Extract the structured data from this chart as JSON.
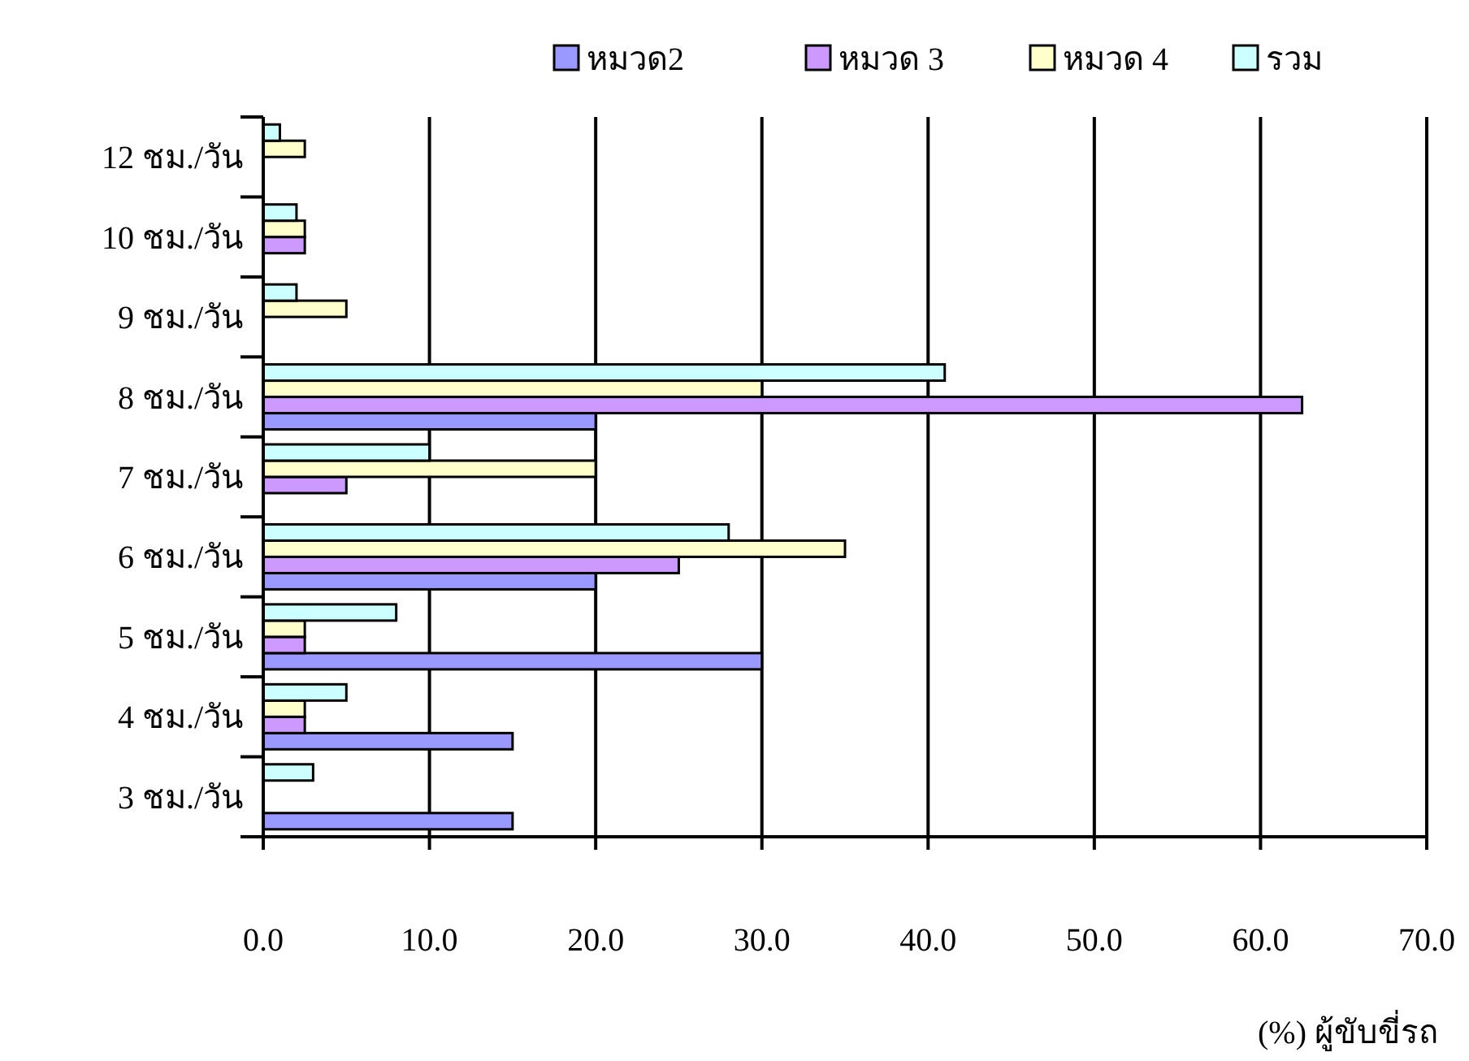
{
  "chart_data": {
    "type": "bar",
    "orientation": "horizontal",
    "xlabel": "(%) ผู้ขับขี่รถ",
    "categories": [
      "12 ชม./วัน",
      "10 ชม./วัน",
      "9 ชม./วัน",
      "8 ชม./วัน",
      "7 ชม./วัน",
      "6 ชม./วัน",
      "5 ชม./วัน",
      "4 ชม./วัน",
      "3 ชม./วัน"
    ],
    "series": [
      {
        "name": "หมวด2",
        "color": "#9999ff",
        "values": [
          0,
          0,
          0,
          20,
          0,
          20,
          30,
          15,
          15
        ]
      },
      {
        "name": "หมวด 3",
        "color": "#cc99ff",
        "values": [
          0,
          2.5,
          0,
          62.5,
          5,
          25,
          2.5,
          2.5,
          0
        ]
      },
      {
        "name": "หมวด 4",
        "color": "#ffffcc",
        "values": [
          2.5,
          2.5,
          5,
          30,
          20,
          35,
          2.5,
          2.5,
          0
        ]
      },
      {
        "name": "รวม",
        "color": "#ccffff",
        "values": [
          1,
          2,
          2,
          41,
          10,
          28,
          8,
          5,
          3
        ]
      }
    ],
    "xlim": [
      0,
      70
    ],
    "xticks": [
      {
        "value": 0,
        "label": "0.0"
      },
      {
        "value": 10,
        "label": "10.0"
      },
      {
        "value": 20,
        "label": "20.0"
      },
      {
        "value": 30,
        "label": "30.0"
      },
      {
        "value": 40,
        "label": "40.0"
      },
      {
        "value": 50,
        "label": "50.0"
      },
      {
        "value": 60,
        "label": "60.0"
      },
      {
        "value": 70,
        "label": "70.0"
      }
    ],
    "grid": "x",
    "legend": "top"
  }
}
